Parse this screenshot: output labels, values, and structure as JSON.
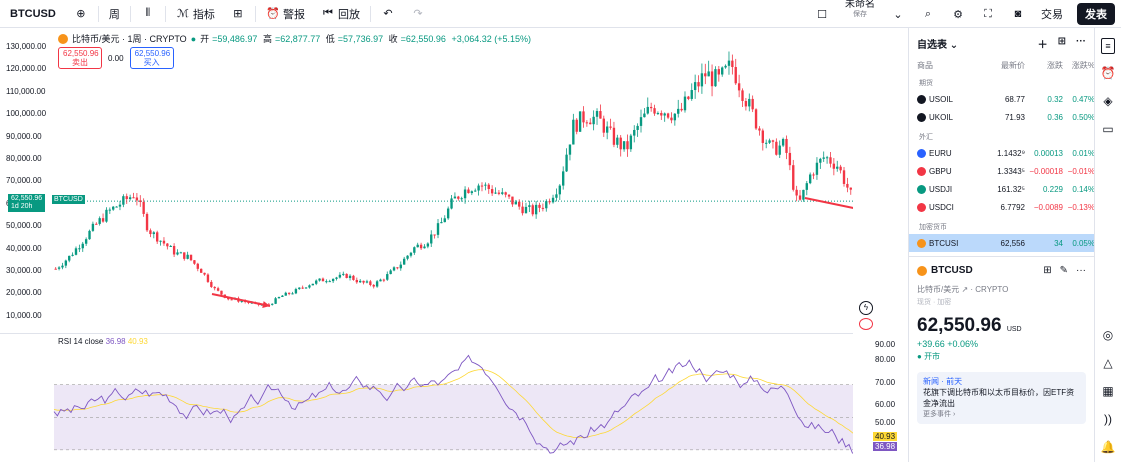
{
  "toolbar": {
    "symbol": "BTCUSD",
    "interval": "周",
    "indicators": "指标",
    "alert": "警报",
    "replay": "回放",
    "unnamed": "未命名",
    "saved": "保存",
    "trade": "交易",
    "publish": "发表"
  },
  "legend": {
    "title": "比特币/美元 · 1周 · CRYPTO",
    "open_label": "开",
    "open": "=59,486.97",
    "high_label": "高",
    "high": "=62,877.77",
    "low_label": "低",
    "low": "=57,736.97",
    "close_label": "收",
    "close": "=62,550.96",
    "change": "+3,064.32 (+5.15%)",
    "sell_price": "62,550.96",
    "sell_label": "卖出",
    "spread": "0.00",
    "buy_price": "62,550.96",
    "buy_label": "买入"
  },
  "price_axis": [
    "130,000.00",
    "120,000.00",
    "110,000.00",
    "100,000.00",
    "90,000.00",
    "80,000.00",
    "70,000.00",
    "60,000.00",
    "50,000.00",
    "40,000.00",
    "30,000.00",
    "20,000.00",
    "10,000.00"
  ],
  "price_tag": {
    "price": "62,550.96",
    "countdown": "1d 20h",
    "symbol": "BTCUSD"
  },
  "rsi": {
    "label": "RSI 14 close",
    "value1": "36.98",
    "value2": "40.93",
    "axis": [
      "90.00",
      "80.00",
      "70.00",
      "60.00",
      "50.00"
    ],
    "tag1": "40.93",
    "tag2": "36.98"
  },
  "watchlist": {
    "title": "自选表",
    "col_symbol": "商品",
    "col_last": "最新价",
    "col_change": "涨跌",
    "col_pct": "涨跌%",
    "sections": [
      {
        "name": "期货",
        "rows": [
          {
            "symbol": "USOIL",
            "last": "68.77",
            "change": "0.32",
            "pct": "0.47%",
            "color": "#131722"
          },
          {
            "symbol": "UKOIL",
            "last": "71.93",
            "change": "0.36",
            "pct": "0.50%",
            "color": "#131722"
          }
        ]
      },
      {
        "name": "外汇",
        "rows": [
          {
            "symbol": "EURU",
            "last": "1.1432⁹",
            "change": "0.00013",
            "pct": "0.01%",
            "color": "#2962ff"
          },
          {
            "symbol": "GBPU",
            "last": "1.3343⁵",
            "change": "−0.00018",
            "pct": "−0.01%",
            "color": "#f23645"
          },
          {
            "symbol": "USDJI",
            "last": "161.32⁵",
            "change": "0.229",
            "pct": "0.14%",
            "color": "#089981"
          },
          {
            "symbol": "USDCI",
            "last": "6.7792",
            "change": "−0.0089",
            "pct": "−0.13%",
            "color": "#f23645"
          }
        ]
      },
      {
        "name": "加密货币",
        "rows": [
          {
            "symbol": "BTCUSI",
            "last": "62,556",
            "change": "34",
            "pct": "0.05%",
            "color": "#f7931a"
          }
        ]
      }
    ]
  },
  "detail": {
    "symbol": "BTCUSD",
    "name": "比特币/美元",
    "exchange": "CRYPTO",
    "sub": "现货 · 加密",
    "price_main": "62,550.",
    "price_frac": "96",
    "currency": "USD",
    "change": "+39.66 +0.06%",
    "market": "开市",
    "news_label": "新闻 · 前天",
    "news_text": "花旗下调比特币和以太币目标价，因ETF资金净流出",
    "news_more": "更多事件 ›"
  },
  "colors": {
    "up": "#089981",
    "down": "#f23645",
    "accent": "#2962ff"
  },
  "chart_data": {
    "type": "candlestick",
    "title": "比特币/美元 · 1周 · CRYPTO",
    "ylim": [
      8000,
      132000
    ],
    "series": [
      {
        "name": "price",
        "values": [
          33000,
          38000,
          45000,
          52000,
          58000,
          62000,
          66000,
          50000,
          45000,
          40000,
          38000,
          32000,
          24000,
          20000,
          19000,
          17500,
          17000,
          21000,
          23000,
          26000,
          28000,
          29000,
          30000,
          27000,
          26000,
          30000,
          35000,
          42000,
          45000,
          52000,
          63000,
          68000,
          70000,
          67000,
          64000,
          60000,
          58000,
          62000,
          70000,
          95000,
          100000,
          98000,
          90000,
          85000,
          96000,
          104000,
          102000,
          100000,
          110000,
          118000,
          115000,
          122000,
          108000,
          95000,
          85000,
          87000,
          60000,
          75000,
          82000,
          78000,
          65000,
          62550
        ]
      }
    ]
  }
}
